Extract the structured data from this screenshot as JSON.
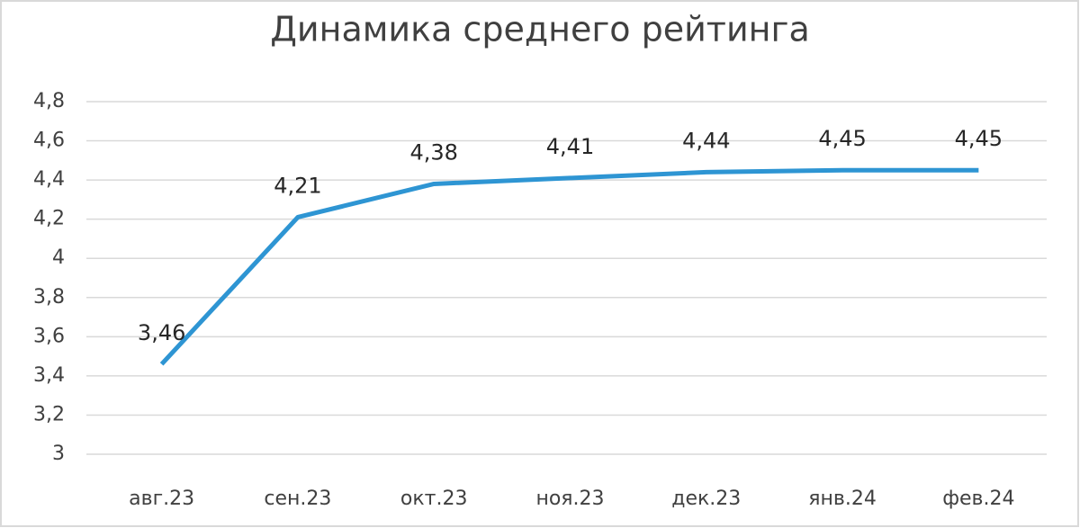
{
  "chart_data": {
    "type": "line",
    "title": "Динамика среднего рейтинга",
    "categories": [
      "авг.23",
      "сен.23",
      "окт.23",
      "ноя.23",
      "дек.23",
      "янв.24",
      "фев.24"
    ],
    "series": [
      {
        "color": "#2e95d3",
        "values": [
          3.46,
          4.21,
          4.38,
          4.41,
          4.44,
          4.45,
          4.45
        ],
        "value_labels": [
          "3,46",
          "4,21",
          "4,38",
          "4,41",
          "4,44",
          "4,45",
          "4,45"
        ]
      }
    ],
    "ylim": [
      3,
      4.8
    ],
    "yticks": [
      3,
      {
        "value": 3.2,
        "label": "3,2"
      },
      {
        "value": 3.4,
        "label": "3,4"
      },
      {
        "value": 3.6,
        "label": "3,6"
      },
      {
        "value": 3.8,
        "label": "3,8"
      },
      4,
      {
        "value": 4.2,
        "label": "4,2"
      },
      {
        "value": 4.4,
        "label": "4,4"
      },
      {
        "value": 4.6,
        "label": "4,6"
      },
      {
        "value": 4.8,
        "label": "4,8"
      }
    ],
    "grid": true
  }
}
